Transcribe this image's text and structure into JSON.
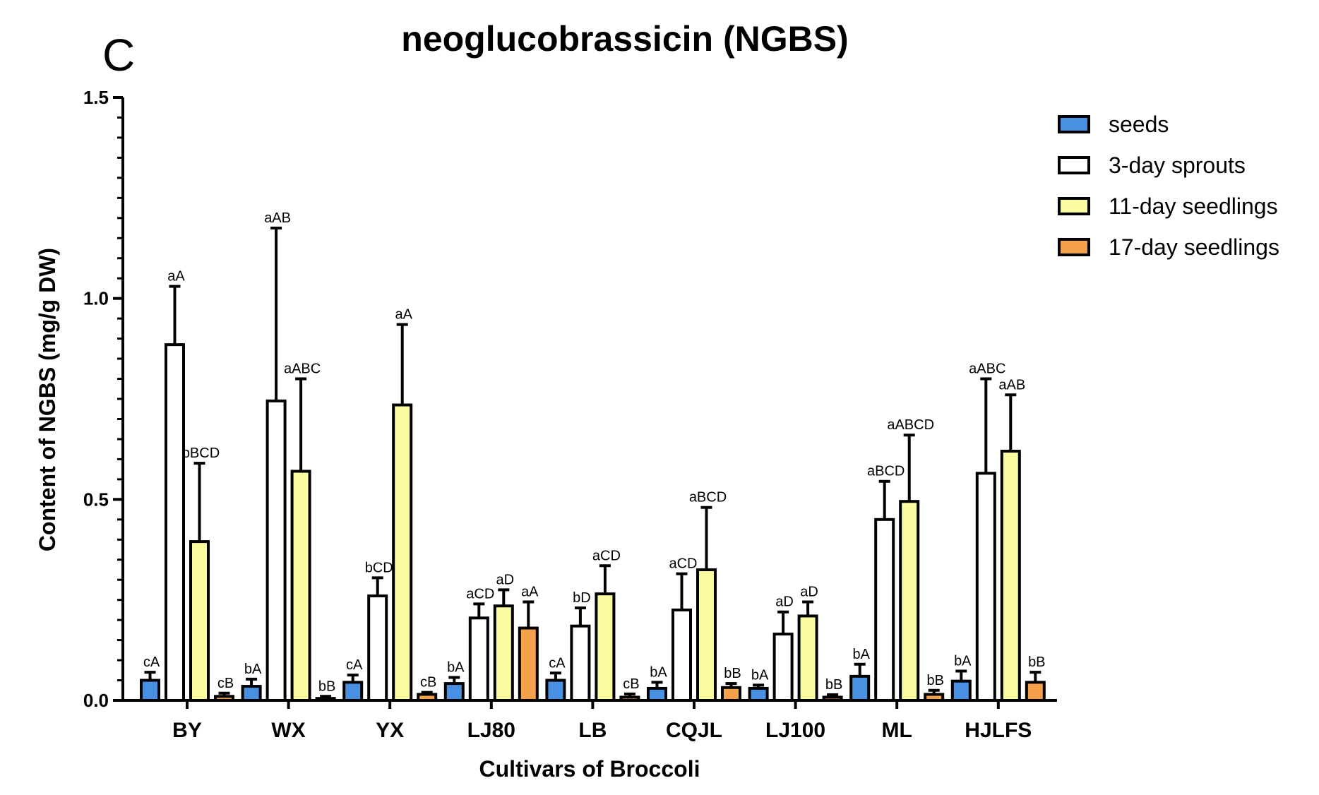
{
  "chart_data": {
    "type": "bar",
    "panel_label": "C",
    "title": "neoglucobrassicin (NGBS)",
    "xlabel": "Cultivars of Broccoli",
    "ylabel": "Content of  NGBS (mg/g DW)",
    "ylim": [
      0,
      1.5
    ],
    "yticks": [
      "0.0",
      "0.5",
      "1.0",
      "1.5"
    ],
    "categories": [
      "BY",
      "WX",
      "YX",
      "LJ80",
      "LB",
      "CQJL",
      "LJ100",
      "ML",
      "HJLFS"
    ],
    "series": [
      {
        "name": "seeds",
        "color": "#4a90e2",
        "values": [
          0.05,
          0.035,
          0.045,
          0.042,
          0.05,
          0.03,
          0.03,
          0.06,
          0.048
        ],
        "errors": [
          0.02,
          0.018,
          0.018,
          0.015,
          0.018,
          0.015,
          0.008,
          0.03,
          0.025
        ],
        "labels": [
          "cA",
          "bA",
          "cA",
          "bA",
          "cA",
          "bA",
          "bA",
          "bA",
          "bA"
        ]
      },
      {
        "name": "3-day sprouts",
        "color": "#ffffff",
        "values": [
          0.885,
          0.745,
          0.26,
          0.205,
          0.185,
          0.225,
          0.165,
          0.45,
          0.565
        ],
        "errors": [
          0.145,
          0.43,
          0.045,
          0.035,
          0.045,
          0.09,
          0.055,
          0.095,
          0.235
        ],
        "labels": [
          "aA",
          "aAB",
          "bCD",
          "aCD",
          "bD",
          "aCD",
          "aD",
          "aBCD",
          "aABC"
        ]
      },
      {
        "name": "11-day seedlings",
        "color": "#fbfba0",
        "values": [
          0.395,
          0.57,
          0.735,
          0.235,
          0.265,
          0.325,
          0.21,
          0.495,
          0.62
        ],
        "errors": [
          0.195,
          0.23,
          0.2,
          0.04,
          0.07,
          0.155,
          0.035,
          0.165,
          0.14
        ],
        "labels": [
          "bBCD",
          "aABC",
          "aA",
          "aD",
          "aCD",
          "aBCD",
          "aD",
          "aABCD",
          "aAB"
        ]
      },
      {
        "name": "17-day seedlings",
        "color": "#f5a04a",
        "values": [
          0.01,
          0.005,
          0.015,
          0.18,
          0.008,
          0.032,
          0.008,
          0.015,
          0.045
        ],
        "errors": [
          0.008,
          0.005,
          0.005,
          0.065,
          0.008,
          0.01,
          0.006,
          0.01,
          0.025
        ],
        "labels": [
          "cB",
          "bB",
          "cB",
          "aA",
          "cB",
          "bB",
          "bB",
          "bB",
          "bB"
        ]
      }
    ],
    "legend_position": "top-right"
  }
}
